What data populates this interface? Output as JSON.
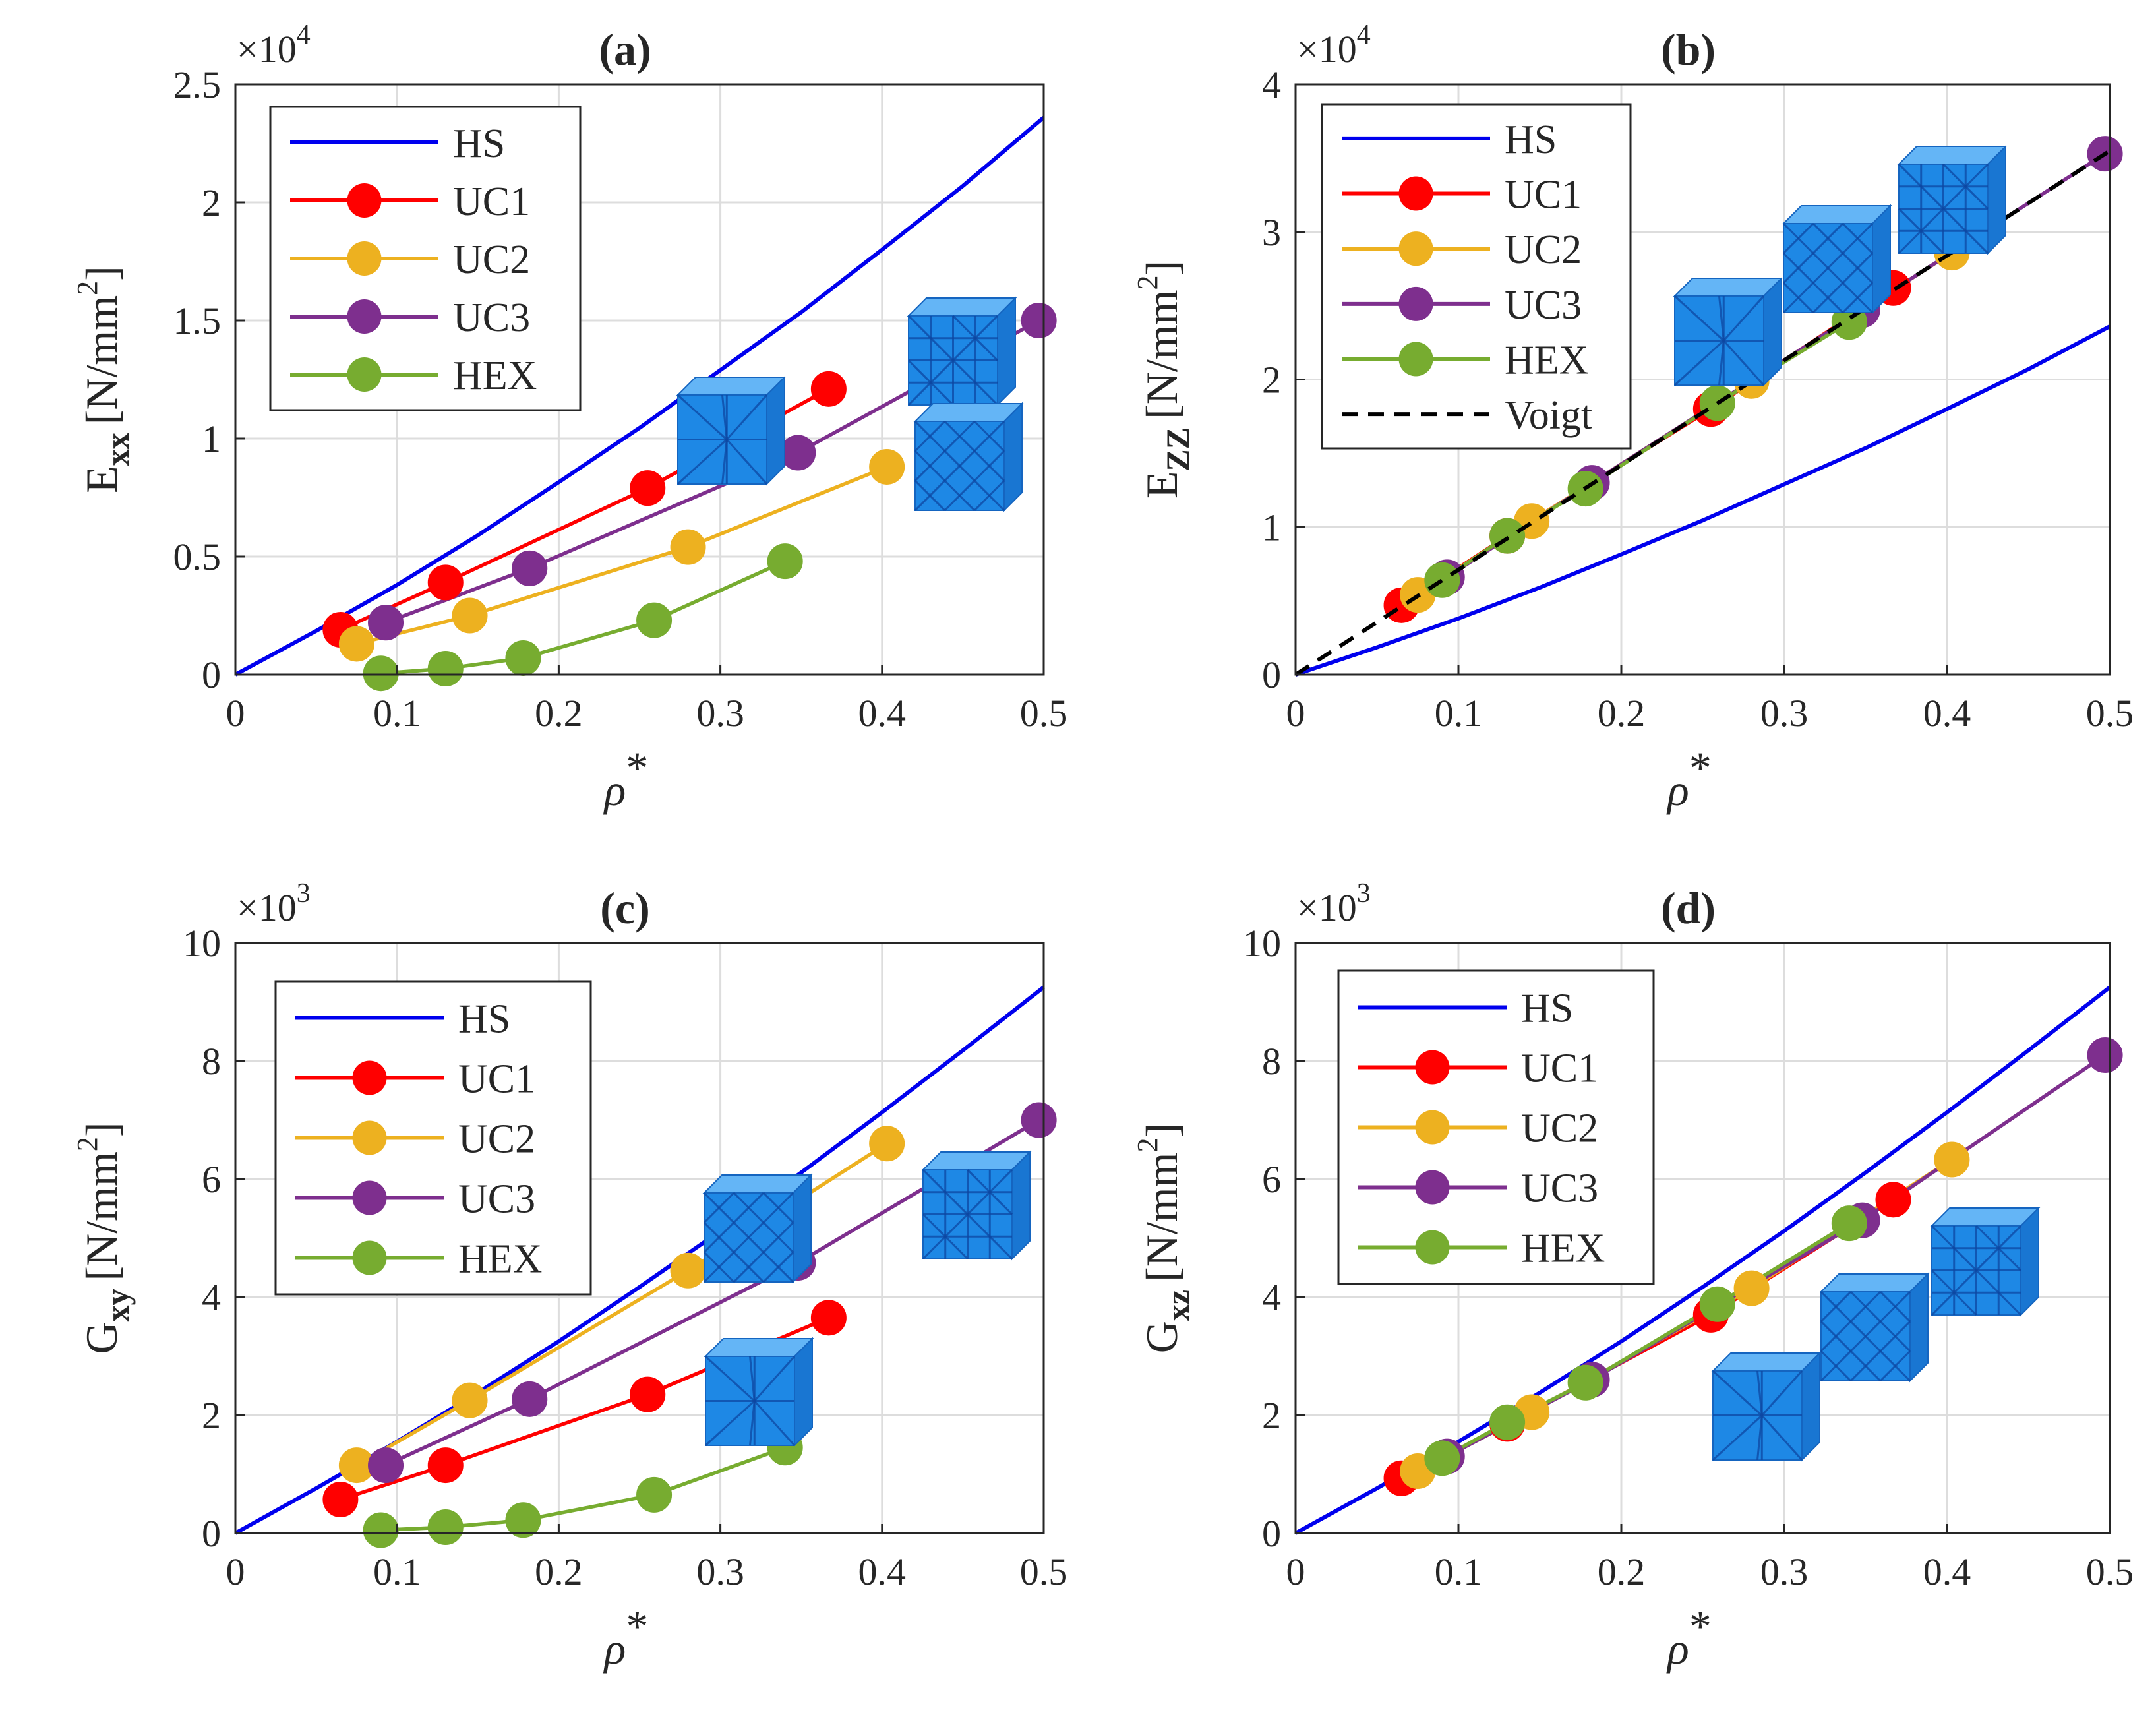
{
  "colors": {
    "HS": "#0000EE",
    "UC1": "#FF0000",
    "UC2": "#EDB120",
    "UC3": "#7E2F8E",
    "HEX": "#77AC30",
    "Voigt": "#000000",
    "grid": "#DDDDDD",
    "axis": "#262626",
    "unit_cell": "#1E88E5"
  },
  "chart_data": [
    {
      "type": "line",
      "title": "(a)",
      "xlabel": "ρ",
      "xlabel_sup": "*",
      "ylabel": "E",
      "ylabel_sub": "xx",
      "ylabel_units_prefix": "[N/mm",
      "ylabel_units_sup": "2",
      "ylabel_units_suffix": "]",
      "multiplier": "×10",
      "multiplier_exp": "4",
      "xlim": [
        0,
        0.5
      ],
      "ylim": [
        0,
        2.5
      ],
      "xticks": [
        "0",
        "0.1",
        "0.2",
        "0.3",
        "0.4",
        "0.5"
      ],
      "yticks": [
        "0",
        "0.5",
        "1",
        "1.5",
        "2",
        "2.5"
      ],
      "grid": true,
      "legend_position": "top-left",
      "series": [
        {
          "name": "HS",
          "style": "line",
          "x": [
            0,
            0.05,
            0.1,
            0.15,
            0.2,
            0.25,
            0.3,
            0.35,
            0.4,
            0.45,
            0.5
          ],
          "y": [
            0,
            0.185,
            0.38,
            0.59,
            0.815,
            1.045,
            1.29,
            1.535,
            1.8,
            2.07,
            2.36
          ]
        },
        {
          "name": "UC1",
          "style": "marker-line",
          "x": [
            0.065,
            0.13,
            0.255,
            0.367
          ],
          "y": [
            0.19,
            0.39,
            0.79,
            1.21
          ]
        },
        {
          "name": "UC2",
          "style": "marker-line",
          "x": [
            0.075,
            0.145,
            0.28,
            0.403
          ],
          "y": [
            0.13,
            0.25,
            0.54,
            0.88
          ]
        },
        {
          "name": "UC3",
          "style": "marker-line",
          "x": [
            0.093,
            0.182,
            0.348,
            0.497
          ],
          "y": [
            0.22,
            0.45,
            0.94,
            1.5
          ]
        },
        {
          "name": "HEX",
          "style": "marker-line",
          "x": [
            0.09,
            0.13,
            0.178,
            0.259,
            0.34
          ],
          "y": [
            0.005,
            0.025,
            0.07,
            0.23,
            0.48
          ]
        }
      ],
      "legend": [
        "HS",
        "UC1",
        "UC2",
        "UC3",
        "HEX"
      ]
    },
    {
      "type": "line",
      "title": "(b)",
      "xlabel": "ρ",
      "xlabel_sup": "*",
      "ylabel": "E",
      "ylabel_sub": "ZZ",
      "ylabel_units_prefix": "[N/mm",
      "ylabel_units_sup": "2",
      "ylabel_units_suffix": "]",
      "multiplier": "×10",
      "multiplier_exp": "4",
      "xlim": [
        0,
        0.5
      ],
      "ylim": [
        0,
        4
      ],
      "xticks": [
        "0",
        "0.1",
        "0.2",
        "0.3",
        "0.4",
        "0.5"
      ],
      "yticks": [
        "0",
        "1",
        "2",
        "3",
        "4"
      ],
      "grid": true,
      "legend_position": "top-left",
      "series": [
        {
          "name": "HS",
          "style": "line",
          "x": [
            0,
            0.05,
            0.1,
            0.15,
            0.2,
            0.25,
            0.3,
            0.35,
            0.4,
            0.45,
            0.5
          ],
          "y": [
            0,
            0.185,
            0.38,
            0.59,
            0.815,
            1.045,
            1.29,
            1.535,
            1.8,
            2.07,
            2.36
          ]
        },
        {
          "name": "UC1",
          "style": "marker-line",
          "x": [
            0.065,
            0.13,
            0.255,
            0.367
          ],
          "y": [
            0.47,
            0.94,
            1.8,
            2.62
          ]
        },
        {
          "name": "UC2",
          "style": "marker-line",
          "x": [
            0.075,
            0.145,
            0.28,
            0.403
          ],
          "y": [
            0.54,
            1.04,
            1.99,
            2.86
          ]
        },
        {
          "name": "UC3",
          "style": "marker-line",
          "x": [
            0.093,
            0.182,
            0.348,
            0.497
          ],
          "y": [
            0.66,
            1.3,
            2.47,
            3.53
          ]
        },
        {
          "name": "HEX",
          "style": "marker-line",
          "x": [
            0.09,
            0.13,
            0.178,
            0.259,
            0.34
          ],
          "y": [
            0.64,
            0.94,
            1.26,
            1.84,
            2.39
          ]
        },
        {
          "name": "Voigt",
          "style": "dashed",
          "x": [
            0,
            0.5
          ],
          "y": [
            0,
            3.55
          ]
        }
      ],
      "legend": [
        "HS",
        "UC1",
        "UC2",
        "UC3",
        "HEX",
        "Voigt"
      ]
    },
    {
      "type": "line",
      "title": "(c)",
      "xlabel": "ρ",
      "xlabel_sup": "*",
      "ylabel": "G",
      "ylabel_sub": "xy",
      "ylabel_units_prefix": "[N/mm",
      "ylabel_units_sup": "2",
      "ylabel_units_suffix": "]",
      "multiplier": "×10",
      "multiplier_exp": "3",
      "xlim": [
        0,
        0.5
      ],
      "ylim": [
        0,
        10
      ],
      "xticks": [
        "0",
        "0.1",
        "0.2",
        "0.3",
        "0.4",
        "0.5"
      ],
      "yticks": [
        "0",
        "2",
        "4",
        "6",
        "8",
        "10"
      ],
      "grid": true,
      "legend_position": "top-left",
      "series": [
        {
          "name": "HS",
          "style": "line",
          "x": [
            0,
            0.05,
            0.1,
            0.15,
            0.2,
            0.25,
            0.3,
            0.35,
            0.4,
            0.45,
            0.5
          ],
          "y": [
            0,
            0.76,
            1.55,
            2.38,
            3.25,
            4.17,
            5.12,
            6.11,
            7.13,
            8.18,
            9.25
          ]
        },
        {
          "name": "UC1",
          "style": "marker-line",
          "x": [
            0.065,
            0.13,
            0.255,
            0.367
          ],
          "y": [
            0.57,
            1.15,
            2.35,
            3.65
          ]
        },
        {
          "name": "UC2",
          "style": "marker-line",
          "x": [
            0.075,
            0.145,
            0.28,
            0.403
          ],
          "y": [
            1.15,
            2.25,
            4.45,
            6.6
          ]
        },
        {
          "name": "UC3",
          "style": "marker-line",
          "x": [
            0.093,
            0.182,
            0.348,
            0.497
          ],
          "y": [
            1.15,
            2.27,
            4.58,
            7.0
          ]
        },
        {
          "name": "HEX",
          "style": "marker-line",
          "x": [
            0.09,
            0.13,
            0.178,
            0.259,
            0.34
          ],
          "y": [
            0.05,
            0.1,
            0.22,
            0.65,
            1.45
          ]
        }
      ],
      "legend": [
        "HS",
        "UC1",
        "UC2",
        "UC3",
        "HEX"
      ]
    },
    {
      "type": "line",
      "title": "(d)",
      "xlabel": "ρ",
      "xlabel_sup": "*",
      "ylabel": "G",
      "ylabel_sub": "xz",
      "ylabel_units_prefix": "[N/mm",
      "ylabel_units_sup": "2",
      "ylabel_units_suffix": "]",
      "multiplier": "×10",
      "multiplier_exp": "3",
      "xlim": [
        0,
        0.5
      ],
      "ylim": [
        0,
        10
      ],
      "xticks": [
        "0",
        "0.1",
        "0.2",
        "0.3",
        "0.4",
        "0.5"
      ],
      "yticks": [
        "0",
        "2",
        "4",
        "6",
        "8",
        "10"
      ],
      "grid": true,
      "legend_position": "top-left",
      "series": [
        {
          "name": "HS",
          "style": "line",
          "x": [
            0,
            0.05,
            0.1,
            0.15,
            0.2,
            0.25,
            0.3,
            0.35,
            0.4,
            0.45,
            0.5
          ],
          "y": [
            0,
            0.76,
            1.55,
            2.38,
            3.25,
            4.17,
            5.12,
            6.11,
            7.13,
            8.18,
            9.25
          ]
        },
        {
          "name": "UC1",
          "style": "marker-line",
          "x": [
            0.065,
            0.13,
            0.255,
            0.367
          ],
          "y": [
            0.93,
            1.85,
            3.7,
            5.65
          ]
        },
        {
          "name": "UC2",
          "style": "marker-line",
          "x": [
            0.075,
            0.145,
            0.28,
            0.403
          ],
          "y": [
            1.05,
            2.05,
            4.15,
            6.33
          ]
        },
        {
          "name": "UC3",
          "style": "marker-line",
          "x": [
            0.093,
            0.182,
            0.348,
            0.497
          ],
          "y": [
            1.3,
            2.6,
            5.3,
            8.1
          ]
        },
        {
          "name": "HEX",
          "style": "marker-line",
          "x": [
            0.09,
            0.13,
            0.178,
            0.259,
            0.34
          ],
          "y": [
            1.27,
            1.88,
            2.55,
            3.88,
            5.25
          ]
        }
      ],
      "legend": [
        "HS",
        "UC1",
        "UC2",
        "UC3",
        "HEX"
      ]
    }
  ]
}
